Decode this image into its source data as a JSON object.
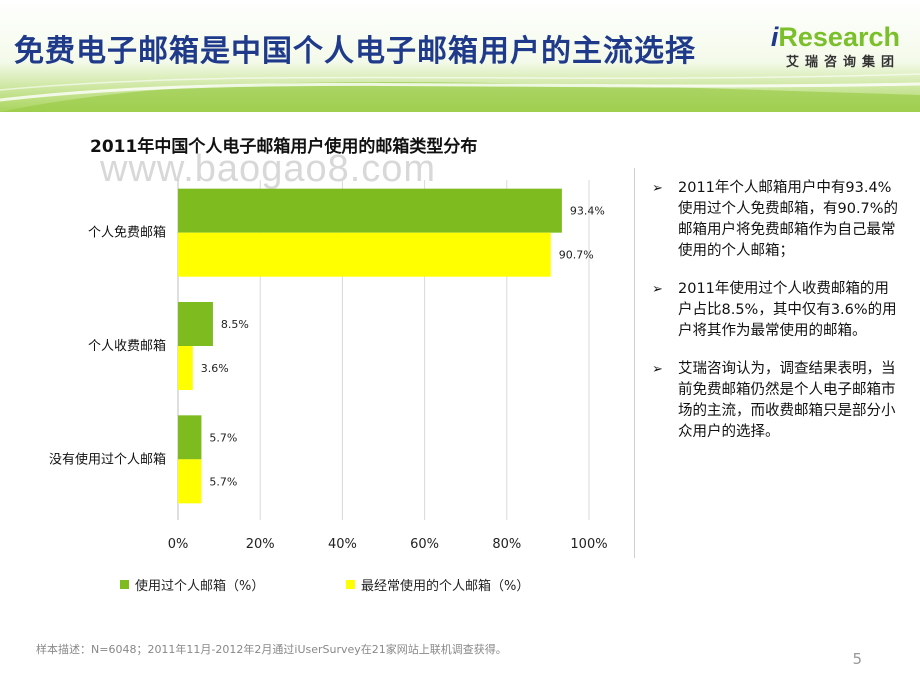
{
  "header": {
    "title": "免费电子邮箱是中国个人电子邮箱用户的主流选择",
    "logo_i": "i",
    "logo_text": "Research",
    "logo_sub": "艾瑞咨询集团"
  },
  "watermark": "www.baogao8.com",
  "colors": {
    "green": "#7dbb1e",
    "yellow": "#ffff00",
    "title_blue": "#1f3a8a",
    "header_bg": "#b9dc78"
  },
  "chart_data": {
    "type": "bar",
    "orientation": "horizontal",
    "title": "2011年中国个人电子邮箱用户使用的邮箱类型分布",
    "categories": [
      "个人免费邮箱",
      "个人收费邮箱",
      "没有使用过个人邮箱"
    ],
    "series": [
      {
        "name": "使用过个人邮箱（%）",
        "values": [
          93.4,
          8.5,
          5.7
        ],
        "labels": [
          "93.4%",
          "8.5%",
          "5.7%"
        ],
        "color": "#7dbb1e"
      },
      {
        "name": "最经常使用的个人邮箱（%）",
        "values": [
          90.7,
          3.6,
          5.7
        ],
        "labels": [
          "90.7%",
          "3.6%",
          "5.7%"
        ],
        "color": "#ffff00"
      }
    ],
    "xlim": [
      0,
      100
    ],
    "xticks": [
      "0%",
      "20%",
      "40%",
      "60%",
      "80%",
      "100%"
    ],
    "grid": true,
    "legend": "bottom"
  },
  "bullets": [
    "2011年个人邮箱用户中有93.4%使用过个人免费邮箱，有90.7%的邮箱用户将免费邮箱作为自己最常使用的个人邮箱；",
    "2011年使用过个人收费邮箱的用户占比8.5%，其中仅有3.6%的用户将其作为最常使用的邮箱。",
    "艾瑞咨询认为，调查结果表明，当前免费邮箱仍然是个人电子邮箱市场的主流，而收费邮箱只是部分小众用户的选择。"
  ],
  "bullet_marker": "➢",
  "footer": {
    "note": "样本描述：N=6048；2011年11月-2012年2月通过iUserSurvey在21家网站上联机调查获得。",
    "page": "5"
  }
}
